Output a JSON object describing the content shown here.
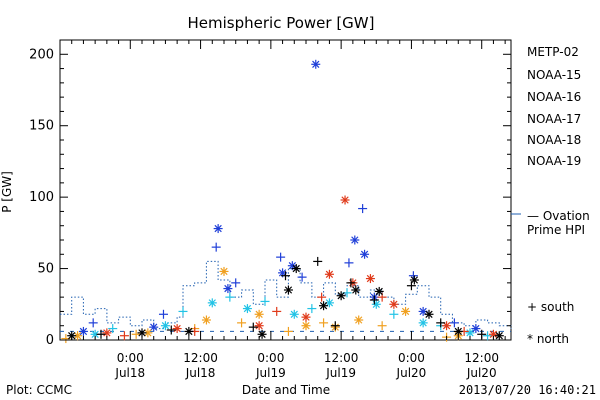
{
  "chart_data": {
    "type": "scatter",
    "title": "Hemispheric Power [GW]",
    "ylabel": "P [GW]",
    "xlabel": "Date and Time",
    "ylim": [
      0,
      210
    ],
    "yticks": [
      0,
      50,
      100,
      150,
      200
    ],
    "ytick_labels": [
      "0",
      "50",
      "100",
      "150",
      "200"
    ],
    "xlim": [
      "2013-07-17 12:00",
      "2013-07-20 17:00"
    ],
    "xticks": [
      {
        "x": "2013-07-18 00:00",
        "time": "0:00",
        "date": "Jul18"
      },
      {
        "x": "2013-07-18 12:00",
        "time": "12:00",
        "date": "Jul18"
      },
      {
        "x": "2013-07-19 00:00",
        "time": "0:00",
        "date": "Jul19"
      },
      {
        "x": "2013-07-19 12:00",
        "time": "12:00",
        "date": "Jul19"
      },
      {
        "x": "2013-07-20 00:00",
        "time": "0:00",
        "date": "Jul20"
      },
      {
        "x": "2013-07-20 12:00",
        "time": "12:00",
        "date": "Jul20"
      }
    ],
    "legend": {
      "placement": "right",
      "satellites": [
        {
          "name": "METP-02",
          "color": "#000000"
        },
        {
          "name": "NOAA-15",
          "color": "#1f3fd8"
        },
        {
          "name": "NOAA-16",
          "color": "#22c3e6"
        },
        {
          "name": "NOAA-17",
          "color": "#26d17a"
        },
        {
          "name": "NOAA-18",
          "color": "#f0a020"
        },
        {
          "name": "NOAA-19",
          "color": "#e03a1a"
        }
      ],
      "ovation_line1": "— Ovation",
      "ovation_line2": "Prime HPI",
      "ovation_color": "#1f5fb0",
      "south_label": "+ south",
      "north_label": "* north"
    },
    "series": [
      {
        "name": "NOAA-15",
        "color": "#1f3fd8",
        "marker": "*",
        "points": [
          [
            "2013-07-17 16:00",
            6
          ],
          [
            "2013-07-18 04:00",
            9
          ],
          [
            "2013-07-18 15:00",
            78
          ],
          [
            "2013-07-18 16:40",
            36
          ],
          [
            "2013-07-19 02:00",
            47
          ],
          [
            "2013-07-19 03:40",
            52
          ],
          [
            "2013-07-19 07:40",
            193
          ],
          [
            "2013-07-19 14:20",
            70
          ],
          [
            "2013-07-19 16:00",
            60
          ],
          [
            "2013-07-19 17:40",
            30
          ],
          [
            "2013-07-20 02:00",
            20
          ],
          [
            "2013-07-20 11:00",
            8
          ]
        ]
      },
      {
        "name": "NOAA-15",
        "color": "#1f3fd8",
        "marker": "+",
        "points": [
          [
            "2013-07-17 17:40",
            12
          ],
          [
            "2013-07-18 05:40",
            18
          ],
          [
            "2013-07-18 14:40",
            65
          ],
          [
            "2013-07-18 18:00",
            40
          ],
          [
            "2013-07-19 01:40",
            58
          ],
          [
            "2013-07-19 05:20",
            44
          ],
          [
            "2013-07-19 13:20",
            54
          ],
          [
            "2013-07-19 15:40",
            92
          ],
          [
            "2013-07-20 00:20",
            45
          ],
          [
            "2013-07-20 07:20",
            12
          ]
        ]
      },
      {
        "name": "NOAA-16",
        "color": "#22c3e6",
        "marker": "*",
        "points": [
          [
            "2013-07-17 18:00",
            4
          ],
          [
            "2013-07-18 06:00",
            10
          ],
          [
            "2013-07-18 14:00",
            26
          ],
          [
            "2013-07-18 20:00",
            22
          ],
          [
            "2013-07-19 04:00",
            18
          ],
          [
            "2013-07-19 10:00",
            26
          ],
          [
            "2013-07-19 18:00",
            25
          ],
          [
            "2013-07-20 02:00",
            12
          ],
          [
            "2013-07-20 10:00",
            5
          ]
        ]
      },
      {
        "name": "NOAA-16",
        "color": "#22c3e6",
        "marker": "+",
        "points": [
          [
            "2013-07-17 21:00",
            8
          ],
          [
            "2013-07-18 09:00",
            20
          ],
          [
            "2013-07-18 17:00",
            30
          ],
          [
            "2013-07-18 23:00",
            27
          ],
          [
            "2013-07-19 07:00",
            22
          ],
          [
            "2013-07-19 13:00",
            33
          ],
          [
            "2013-07-19 21:00",
            18
          ],
          [
            "2013-07-20 05:00",
            10
          ],
          [
            "2013-07-20 13:00",
            3
          ]
        ]
      },
      {
        "name": "NOAA-18",
        "color": "#f0a020",
        "marker": "*",
        "points": [
          [
            "2013-07-17 15:00",
            3
          ],
          [
            "2013-07-18 03:00",
            5
          ],
          [
            "2013-07-18 13:00",
            14
          ],
          [
            "2013-07-18 16:00",
            48
          ],
          [
            "2013-07-18 22:00",
            18
          ],
          [
            "2013-07-19 06:00",
            10
          ],
          [
            "2013-07-19 11:00",
            9
          ],
          [
            "2013-07-19 15:00",
            14
          ],
          [
            "2013-07-19 23:00",
            20
          ],
          [
            "2013-07-20 08:00",
            3
          ]
        ]
      },
      {
        "name": "NOAA-18",
        "color": "#f0a020",
        "marker": "+",
        "points": [
          [
            "2013-07-17 13:00",
            1
          ],
          [
            "2013-07-18 01:00",
            4
          ],
          [
            "2013-07-18 11:00",
            8
          ],
          [
            "2013-07-18 19:00",
            12
          ],
          [
            "2013-07-19 03:00",
            6
          ],
          [
            "2013-07-19 09:00",
            12
          ],
          [
            "2013-07-19 19:00",
            10
          ],
          [
            "2013-07-20 06:00",
            2
          ]
        ]
      },
      {
        "name": "NOAA-19",
        "color": "#e03a1a",
        "marker": "*",
        "points": [
          [
            "2013-07-17 20:00",
            5
          ],
          [
            "2013-07-18 08:00",
            8
          ],
          [
            "2013-07-18 22:00",
            10
          ],
          [
            "2013-07-19 06:00",
            16
          ],
          [
            "2013-07-19 10:00",
            46
          ],
          [
            "2013-07-19 12:40",
            98
          ],
          [
            "2013-07-19 14:00",
            40
          ],
          [
            "2013-07-19 17:00",
            43
          ],
          [
            "2013-07-19 21:00",
            25
          ],
          [
            "2013-07-20 06:00",
            10
          ],
          [
            "2013-07-20 14:00",
            4
          ]
        ]
      },
      {
        "name": "NOAA-19",
        "color": "#e03a1a",
        "marker": "+",
        "points": [
          [
            "2013-07-17 23:00",
            3
          ],
          [
            "2013-07-18 11:00",
            6
          ],
          [
            "2013-07-19 01:00",
            20
          ],
          [
            "2013-07-19 08:40",
            30
          ],
          [
            "2013-07-19 19:00",
            30
          ],
          [
            "2013-07-20 09:00",
            6
          ]
        ]
      },
      {
        "name": "METP-02",
        "color": "#000000",
        "marker": "*",
        "points": [
          [
            "2013-07-17 14:00",
            3
          ],
          [
            "2013-07-18 02:00",
            5
          ],
          [
            "2013-07-18 10:00",
            6
          ],
          [
            "2013-07-18 22:30",
            4
          ],
          [
            "2013-07-19 03:00",
            35
          ],
          [
            "2013-07-19 04:20",
            50
          ],
          [
            "2013-07-19 09:00",
            24
          ],
          [
            "2013-07-19 12:00",
            31
          ],
          [
            "2013-07-19 14:30",
            35
          ],
          [
            "2013-07-19 18:30",
            34
          ],
          [
            "2013-07-20 00:30",
            42
          ],
          [
            "2013-07-20 03:00",
            18
          ],
          [
            "2013-07-20 08:00",
            6
          ],
          [
            "2013-07-20 15:00",
            3
          ]
        ]
      },
      {
        "name": "METP-02",
        "color": "#000000",
        "marker": "+",
        "points": [
          [
            "2013-07-17 19:00",
            4
          ],
          [
            "2013-07-18 07:00",
            7
          ],
          [
            "2013-07-18 21:00",
            9
          ],
          [
            "2013-07-19 02:30",
            45
          ],
          [
            "2013-07-19 08:00",
            55
          ],
          [
            "2013-07-19 11:00",
            10
          ],
          [
            "2013-07-19 13:40",
            40
          ],
          [
            "2013-07-19 17:40",
            28
          ],
          [
            "2013-07-20 00:00",
            38
          ],
          [
            "2013-07-20 05:00",
            12
          ],
          [
            "2013-07-20 12:00",
            4
          ]
        ]
      }
    ],
    "ovation": {
      "name": "Ovation Prime HPI",
      "color": "#1f5fb0",
      "points": [
        [
          "2013-07-17 12:00",
          18
        ],
        [
          "2013-07-17 14:00",
          30
        ],
        [
          "2013-07-17 16:00",
          18
        ],
        [
          "2013-07-17 18:00",
          22
        ],
        [
          "2013-07-17 20:00",
          12
        ],
        [
          "2013-07-17 22:00",
          16
        ],
        [
          "2013-07-18 00:00",
          10
        ],
        [
          "2013-07-18 02:00",
          14
        ],
        [
          "2013-07-18 04:00",
          8
        ],
        [
          "2013-07-18 06:00",
          12
        ],
        [
          "2013-07-18 08:00",
          16
        ],
        [
          "2013-07-18 09:00",
          38
        ],
        [
          "2013-07-18 11:00",
          40
        ],
        [
          "2013-07-18 13:00",
          55
        ],
        [
          "2013-07-18 15:00",
          42
        ],
        [
          "2013-07-18 17:00",
          30
        ],
        [
          "2013-07-18 19:00",
          35
        ],
        [
          "2013-07-18 21:00",
          25
        ],
        [
          "2013-07-18 23:00",
          42
        ],
        [
          "2013-07-19 01:00",
          30
        ],
        [
          "2013-07-19 03:00",
          50
        ],
        [
          "2013-07-19 05:00",
          40
        ],
        [
          "2013-07-19 07:00",
          30
        ],
        [
          "2013-07-19 09:00",
          40
        ],
        [
          "2013-07-19 11:00",
          32
        ],
        [
          "2013-07-19 13:00",
          38
        ],
        [
          "2013-07-19 15:00",
          30
        ],
        [
          "2013-07-19 17:00",
          35
        ],
        [
          "2013-07-19 19:00",
          30
        ],
        [
          "2013-07-19 21:00",
          25
        ],
        [
          "2013-07-19 23:00",
          32
        ],
        [
          "2013-07-20 01:00",
          38
        ],
        [
          "2013-07-20 03:00",
          30
        ],
        [
          "2013-07-20 05:00",
          18
        ],
        [
          "2013-07-20 07:00",
          12
        ],
        [
          "2013-07-20 09:00",
          10
        ],
        [
          "2013-07-20 11:00",
          14
        ],
        [
          "2013-07-20 13:00",
          12
        ],
        [
          "2013-07-20 15:00",
          10
        ],
        [
          "2013-07-20 17:00",
          8
        ]
      ]
    }
  },
  "footer": {
    "left": "Plot: CCMC",
    "center": "Date and Time",
    "right": "2013/07/20 16:40:21"
  }
}
